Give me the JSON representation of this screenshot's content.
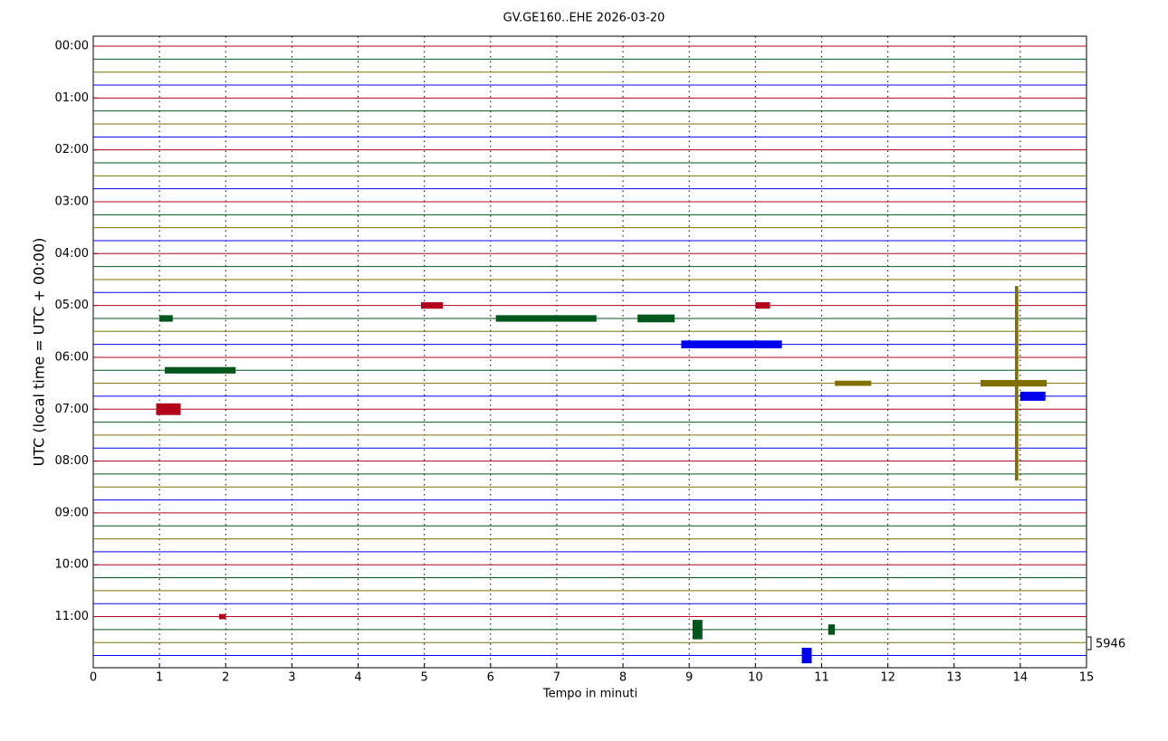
{
  "chart_data": {
    "type": "helicorder",
    "title": "GV.GE160..EHE 2026-03-20",
    "x_label": "Tempo in minuti",
    "y_label": "UTC (local time = UTC + 00:00)",
    "xlim": [
      0,
      15
    ],
    "xticks": [
      0,
      1,
      2,
      3,
      4,
      5,
      6,
      7,
      8,
      9,
      10,
      11,
      12,
      13,
      14,
      15
    ],
    "ylim": [
      -0.77,
      47.94
    ],
    "yticks": [
      {
        "value": 0,
        "label": "00:00"
      },
      {
        "value": 4,
        "label": "01:00"
      },
      {
        "value": 8,
        "label": "02:00"
      },
      {
        "value": 12,
        "label": "03:00"
      },
      {
        "value": 16,
        "label": "04:00"
      },
      {
        "value": 20,
        "label": "05:00"
      },
      {
        "value": 24,
        "label": "06:00"
      },
      {
        "value": 28,
        "label": "07:00"
      },
      {
        "value": 32,
        "label": "08:00"
      },
      {
        "value": 36,
        "label": "09:00"
      },
      {
        "value": 40,
        "label": "10:00"
      },
      {
        "value": 44,
        "label": "11:00"
      }
    ],
    "colors": [
      "#b3001b",
      "#00561b",
      "#807000",
      "#0000f0"
    ],
    "grid": true,
    "scale": 5946,
    "events": [
      {
        "row": 21,
        "start": 1.0,
        "end": 1.2,
        "amplitude": 0.5
      },
      {
        "row": 20,
        "start": 4.95,
        "end": 5.28,
        "amplitude": 0.5
      },
      {
        "row": 20,
        "start": 10.0,
        "end": 10.22,
        "amplitude": 0.5
      },
      {
        "row": 21,
        "start": 6.08,
        "end": 7.6,
        "amplitude": 0.5
      },
      {
        "row": 21,
        "start": 8.22,
        "end": 8.78,
        "amplitude": 0.6
      },
      {
        "row": 23,
        "start": 8.88,
        "end": 10.4,
        "amplitude": 0.6
      },
      {
        "row": 25,
        "start": 1.08,
        "end": 2.15,
        "amplitude": 0.5
      },
      {
        "row": 26,
        "start": 11.2,
        "end": 11.75,
        "amplitude": 0.4
      },
      {
        "row": 26,
        "start": 13.4,
        "end": 14.4,
        "amplitude": 0.5
      },
      {
        "row": 26,
        "start": 13.92,
        "end": 13.97,
        "amplitude": 15
      },
      {
        "row": 27,
        "start": 14.0,
        "end": 14.38,
        "amplitude": 0.7
      },
      {
        "row": 28,
        "start": 0.95,
        "end": 1.32,
        "amplitude": 0.9
      },
      {
        "row": 44,
        "start": 1.9,
        "end": 2.0,
        "amplitude": 0.4
      },
      {
        "row": 45,
        "start": 9.05,
        "end": 9.2,
        "amplitude": 1.5
      },
      {
        "row": 45,
        "start": 11.1,
        "end": 11.2,
        "amplitude": 0.8
      },
      {
        "row": 47,
        "start": 10.7,
        "end": 10.85,
        "amplitude": 1.2
      }
    ]
  }
}
